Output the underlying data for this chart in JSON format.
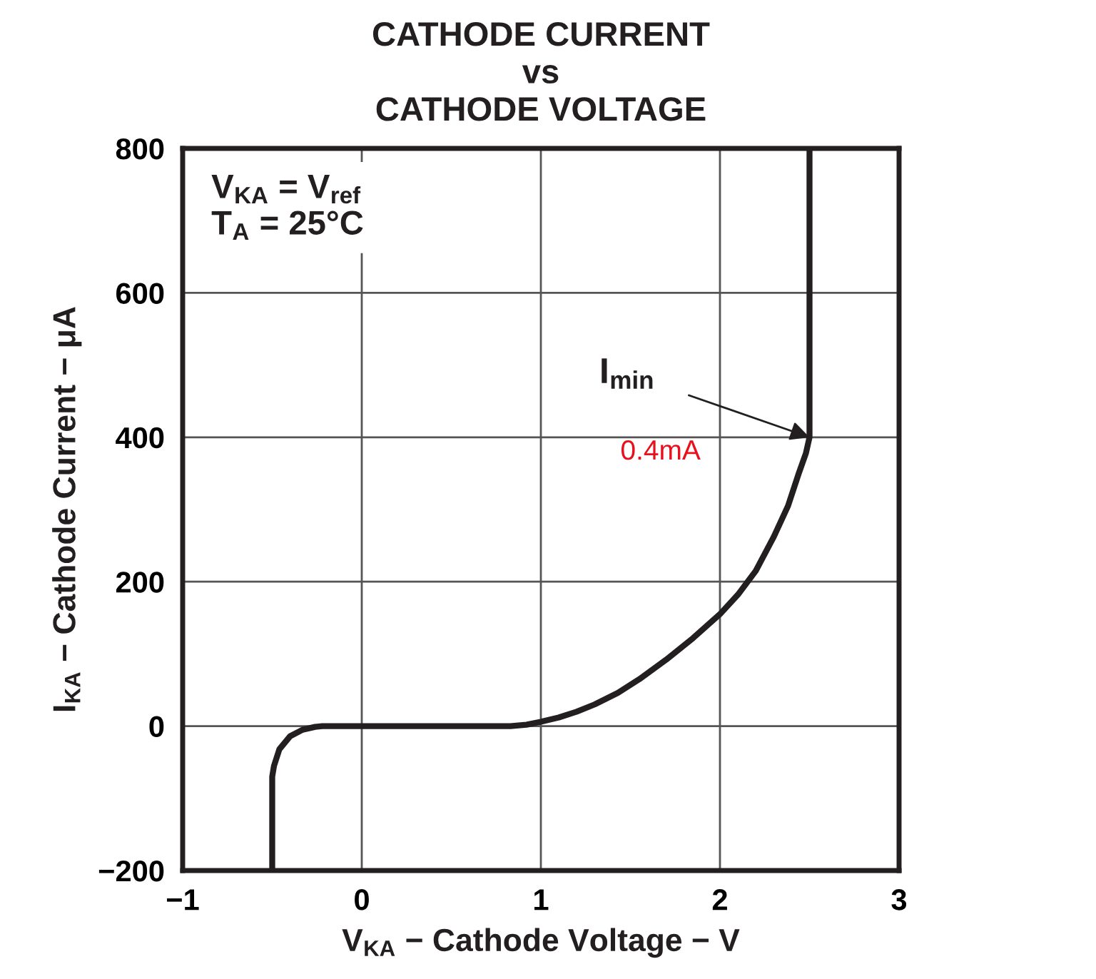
{
  "chart_data": {
    "type": "line",
    "title": "CATHODE CURRENT\nvs\nCATHODE VOLTAGE",
    "xlabel": "V$_{KA}$ − Cathode Voltage − V",
    "ylabel": "I$_{KA}$ − Cathode Current − μA",
    "series": [
      {
        "color": "#231f20",
        "x": [
          -0.5,
          -0.5,
          -0.49,
          -0.46,
          -0.4,
          -0.33,
          -0.26,
          -0.22,
          0.83,
          0.92,
          1.0,
          1.1,
          1.2,
          1.3,
          1.43,
          1.55,
          1.7,
          1.85,
          2.0,
          2.1,
          2.2,
          2.3,
          2.38,
          2.44,
          2.48,
          2.5,
          2.5
        ],
        "values": [
          -200,
          -70,
          -55,
          -32,
          -14,
          -5,
          -1,
          0,
          0,
          2,
          6,
          12,
          20,
          30,
          46,
          65,
          92,
          122,
          155,
          182,
          215,
          262,
          305,
          350,
          378,
          400,
          800
        ]
      }
    ],
    "xlim": [
      -1,
      3
    ],
    "ylim": [
      -200,
      800
    ],
    "xticks": [
      {
        "value": -1,
        "label": "−1"
      },
      0,
      1,
      2,
      3
    ],
    "yticks": [
      {
        "value": -200,
        "label": "−200"
      },
      0,
      200,
      400,
      600,
      800
    ],
    "grid": true,
    "annotations": [
      "V$_{KA}$ = V$_{ref}$\nT$_{A}$ = 25°C",
      "0.4mA",
      {
        "text": "I$_{min}$",
        "x": 2.5,
        "y": 400
      }
    ]
  }
}
